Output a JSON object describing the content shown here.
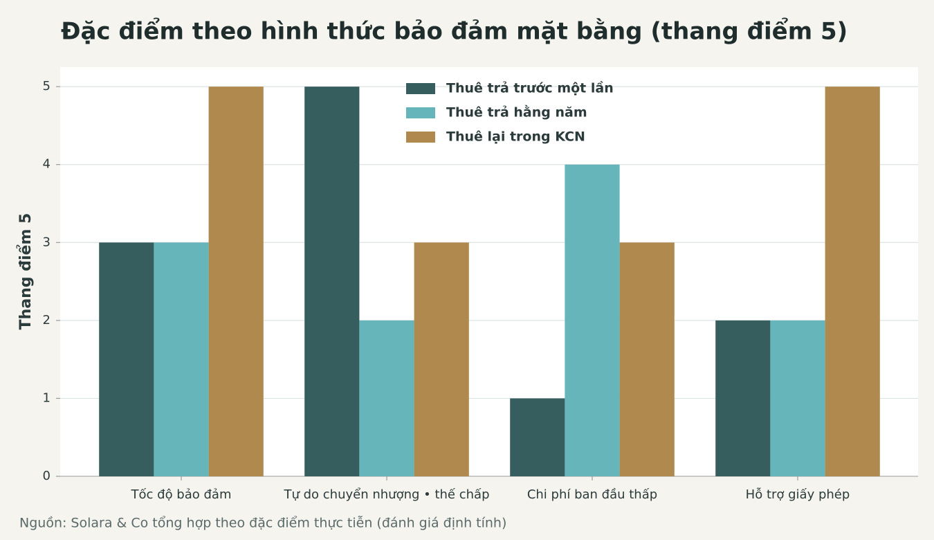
{
  "chart_data": {
    "type": "bar",
    "title": "Đặc điểm theo hình thức bảo đảm mặt bằng (thang điểm 5)",
    "ylabel": "Thang điểm 5",
    "source": "Nguồn: Solara & Co tổng hợp theo đặc điểm thực tiễn (đánh giá định tính)",
    "categories": [
      "Tốc độ bảo đảm",
      "Tự do chuyển nhượng • thế chấp",
      "Chi phí ban đầu thấp",
      "Hỗ trợ giấy phép"
    ],
    "series": [
      {
        "name": "Thuê trả trước một lần",
        "color": "#365e5f",
        "values": [
          3,
          5,
          1,
          2
        ]
      },
      {
        "name": "Thuê trả hằng năm",
        "color": "#66b5ba",
        "values": [
          3,
          2,
          4,
          2
        ]
      },
      {
        "name": "Thuê lại trong KCN",
        "color": "#b0894e",
        "values": [
          5,
          3,
          3,
          5
        ]
      }
    ],
    "ylim": [
      0,
      5.25
    ],
    "yticks": [
      0,
      1,
      2,
      3,
      4,
      5
    ],
    "grid": true,
    "legend": "upper center"
  }
}
